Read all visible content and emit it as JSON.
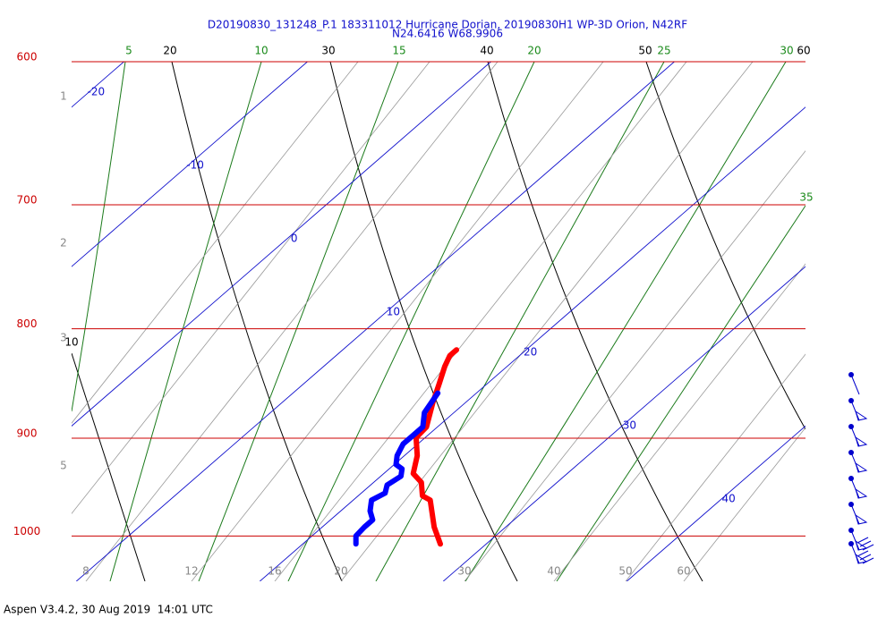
{
  "chart_data": {
    "type": "skewt",
    "title": "D20190830_131248_P.1 183311012 Hurricane Dorian, 20190830H1 WP-3D Orion, N42RF",
    "subtitle": "N24.6416 W68.9906",
    "footer": "Aspen V3.4.2, 30 Aug 2019  14:01 UTC",
    "log_scale": true,
    "ylim": [
      1050,
      600
    ],
    "yticks": [
      600,
      700,
      800,
      900,
      1000
    ],
    "xlim": [
      6.9,
      46.9
    ],
    "isotherms": [
      -20,
      -10,
      0,
      10,
      20,
      30,
      40
    ],
    "dry_adiabats": [
      10,
      20,
      30,
      40,
      50,
      60
    ],
    "moist_adiabats": [
      5,
      10,
      15,
      20,
      25,
      30,
      35
    ],
    "bottom_labels": [
      8,
      12,
      16,
      20,
      30,
      40,
      50,
      60
    ],
    "left_labels": [
      1,
      2,
      3,
      5
    ],
    "series": [
      {
        "color": "#ff0000",
        "pressure": [
          1008.7,
          990.4,
          962.2,
          957.6,
          943.9,
          934.9,
          917.1,
          899.4,
          889.2,
          865.7,
          849.1,
          833.0,
          823.4,
          818.3
        ],
        "values": [
          27.5,
          26.1,
          24.2,
          23.5,
          22.6,
          21.6,
          20.7,
          19.5,
          19.4,
          18.2,
          17.4,
          16.6,
          16.2,
          16.2
        ]
      },
      {
        "color": "#0000ff",
        "pressure": [
          1008.7,
          1000,
          990.4,
          982.8,
          973.4,
          962.2,
          954.9,
          946.6,
          937.6,
          930.3,
          925.9,
          917.1,
          905.6,
          896.8,
          889.2,
          875.7,
          857.4
        ],
        "values": [
          22.9,
          22.4,
          22.3,
          22.3,
          21.6,
          21.0,
          21.3,
          20.9,
          21.1,
          20.7,
          20.1,
          19.6,
          19.2,
          19.2,
          19.2,
          18.4,
          17.9
        ]
      }
    ]
  }
}
